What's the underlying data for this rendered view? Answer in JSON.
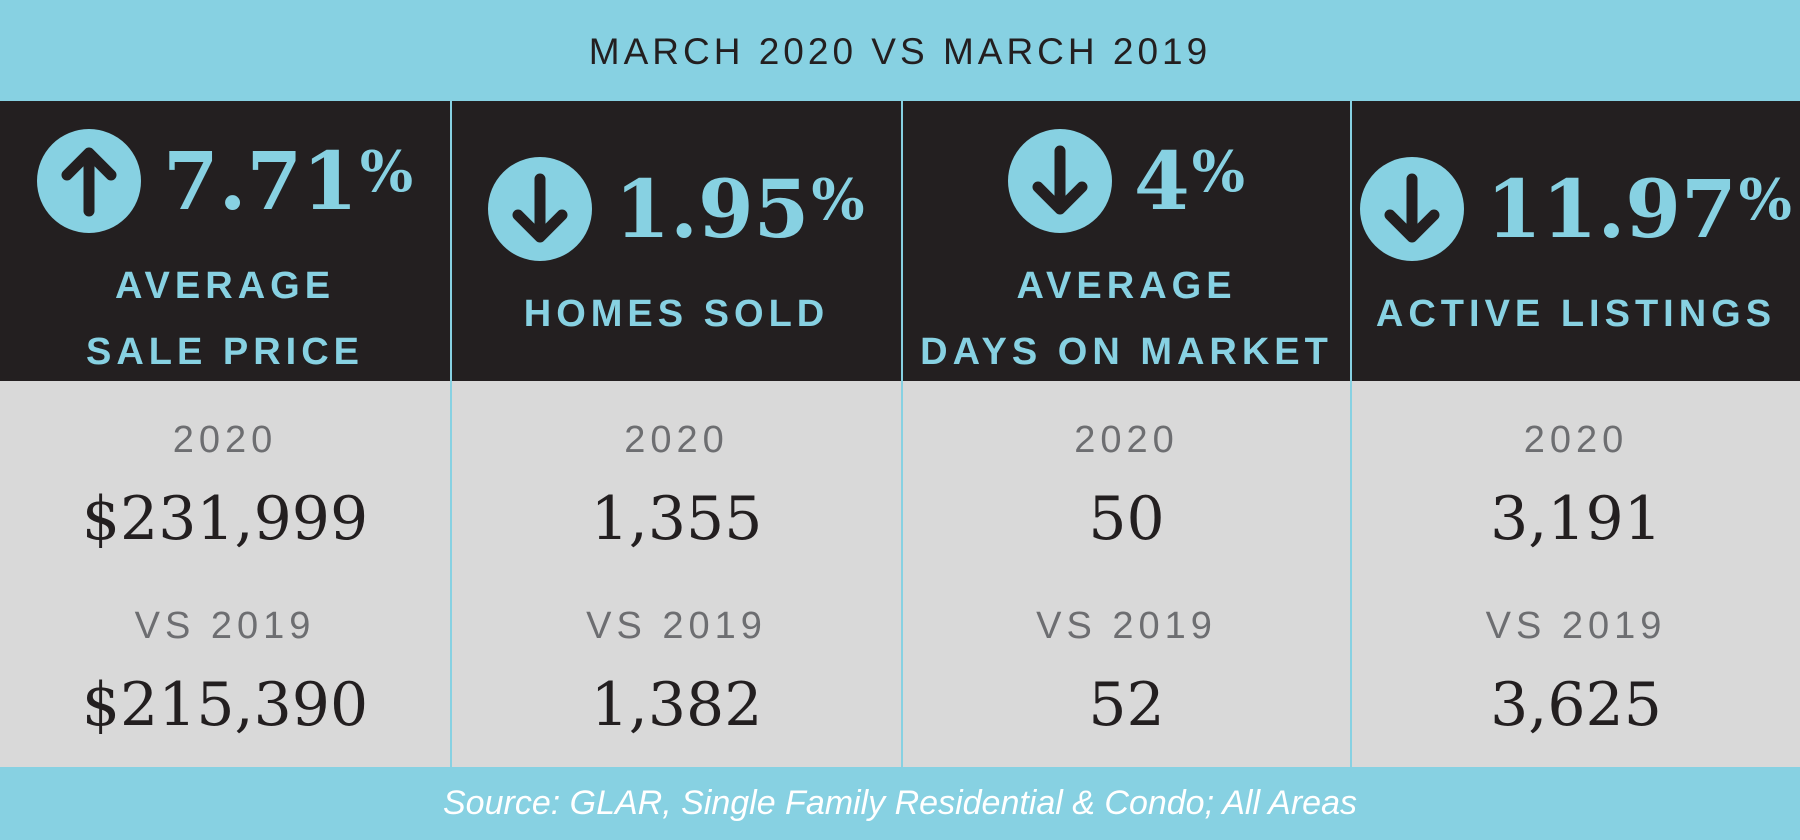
{
  "header": {
    "title": "MARCH 2020 VS MARCH 2019"
  },
  "colors": {
    "accent": "#87d1e2",
    "dark": "#231f20",
    "panel": "#d9d9d9",
    "muted": "#6d6e71",
    "footer_text": "#ffffff"
  },
  "stats": [
    {
      "direction": "up",
      "icon": "arrow-up-icon",
      "value": "7.71",
      "unit": "%",
      "label_line1": "AVERAGE",
      "label_line2": "SALE PRICE",
      "year_label": "2020",
      "year_value": "$231,999",
      "compare_label": "VS 2019",
      "compare_value": "$215,390"
    },
    {
      "direction": "down",
      "icon": "arrow-down-icon",
      "value": "1.95",
      "unit": "%",
      "label_line1": "HOMES SOLD",
      "label_line2": "",
      "year_label": "2020",
      "year_value": "1,355",
      "compare_label": "VS 2019",
      "compare_value": "1,382"
    },
    {
      "direction": "down",
      "icon": "arrow-down-icon",
      "value": "4",
      "unit": "%",
      "label_line1": "AVERAGE",
      "label_line2": "DAYS ON MARKET",
      "year_label": "2020",
      "year_value": "50",
      "compare_label": "VS 2019",
      "compare_value": "52"
    },
    {
      "direction": "down",
      "icon": "arrow-down-icon",
      "value": "11.97",
      "unit": "%",
      "label_line1": "ACTIVE LISTINGS",
      "label_line2": "",
      "year_label": "2020",
      "year_value": "3,191",
      "compare_label": "VS 2019",
      "compare_value": "3,625"
    }
  ],
  "footer": {
    "source": "Source: GLAR, Single Family Residential & Condo; All Areas"
  }
}
